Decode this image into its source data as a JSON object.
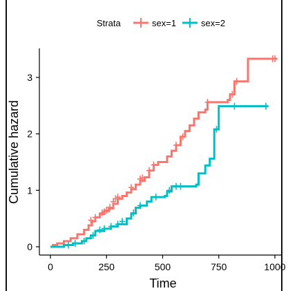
{
  "chart_data": {
    "type": "line",
    "title": "",
    "xlabel": "Time",
    "ylabel": "Cumulative hazard",
    "xlim": [
      0,
      1022
    ],
    "ylim": [
      0,
      3.5
    ],
    "xticks": [
      0,
      250,
      500,
      750,
      1000
    ],
    "yticks": [
      0,
      1,
      2,
      3
    ],
    "grid": false,
    "legend": {
      "title": "Strata",
      "position": "top"
    },
    "series": [
      {
        "name": "sex=1",
        "color": "#F8766D",
        "steps": [
          [
            0,
            0
          ],
          [
            11,
            0.03
          ],
          [
            30,
            0.06
          ],
          [
            60,
            0.1
          ],
          [
            90,
            0.15
          ],
          [
            120,
            0.22
          ],
          [
            150,
            0.3
          ],
          [
            170,
            0.38
          ],
          [
            185,
            0.45
          ],
          [
            200,
            0.52
          ],
          [
            220,
            0.58
          ],
          [
            240,
            0.63
          ],
          [
            260,
            0.68
          ],
          [
            280,
            0.76
          ],
          [
            300,
            0.85
          ],
          [
            320,
            0.9
          ],
          [
            340,
            0.96
          ],
          [
            360,
            1.02
          ],
          [
            380,
            1.1
          ],
          [
            400,
            1.17
          ],
          [
            420,
            1.23
          ],
          [
            440,
            1.35
          ],
          [
            460,
            1.45
          ],
          [
            480,
            1.5
          ],
          [
            520,
            1.6
          ],
          [
            540,
            1.7
          ],
          [
            560,
            1.8
          ],
          [
            580,
            1.95
          ],
          [
            600,
            2.05
          ],
          [
            620,
            2.15
          ],
          [
            640,
            2.27
          ],
          [
            660,
            2.38
          ],
          [
            690,
            2.43
          ],
          [
            700,
            2.56
          ],
          [
            790,
            2.6
          ],
          [
            800,
            2.7
          ],
          [
            820,
            2.93
          ],
          [
            880,
            3.33
          ],
          [
            1010,
            3.33
          ]
        ],
        "censored": [
          [
            180,
            0.47
          ],
          [
            200,
            0.52
          ],
          [
            230,
            0.6
          ],
          [
            240,
            0.62
          ],
          [
            250,
            0.65
          ],
          [
            265,
            0.7
          ],
          [
            280,
            0.8
          ],
          [
            290,
            0.85
          ],
          [
            300,
            0.88
          ],
          [
            360,
            1.05
          ],
          [
            400,
            1.2
          ],
          [
            410,
            1.22
          ],
          [
            440,
            1.35
          ],
          [
            460,
            1.45
          ],
          [
            560,
            1.8
          ],
          [
            590,
            1.95
          ],
          [
            700,
            2.56
          ],
          [
            810,
            2.7
          ],
          [
            830,
            2.93
          ],
          [
            990,
            3.33
          ],
          [
            1000,
            3.33
          ]
        ]
      },
      {
        "name": "sex=2",
        "color": "#00BFC4",
        "steps": [
          [
            0,
            0
          ],
          [
            60,
            0.03
          ],
          [
            100,
            0.06
          ],
          [
            140,
            0.1
          ],
          [
            160,
            0.15
          ],
          [
            180,
            0.2
          ],
          [
            200,
            0.28
          ],
          [
            240,
            0.32
          ],
          [
            270,
            0.36
          ],
          [
            300,
            0.4
          ],
          [
            340,
            0.5
          ],
          [
            360,
            0.59
          ],
          [
            380,
            0.69
          ],
          [
            400,
            0.73
          ],
          [
            430,
            0.8
          ],
          [
            450,
            0.88
          ],
          [
            510,
            0.9
          ],
          [
            520,
            0.98
          ],
          [
            540,
            1.07
          ],
          [
            650,
            1.1
          ],
          [
            660,
            1.3
          ],
          [
            690,
            1.44
          ],
          [
            710,
            1.56
          ],
          [
            730,
            2.08
          ],
          [
            750,
            2.49
          ],
          [
            970,
            2.49
          ]
        ],
        "censored": [
          [
            80,
            0.03
          ],
          [
            110,
            0.06
          ],
          [
            150,
            0.1
          ],
          [
            190,
            0.2
          ],
          [
            220,
            0.3
          ],
          [
            240,
            0.32
          ],
          [
            270,
            0.36
          ],
          [
            300,
            0.4
          ],
          [
            320,
            0.45
          ],
          [
            370,
            0.6
          ],
          [
            400,
            0.73
          ],
          [
            470,
            0.88
          ],
          [
            530,
            1.0
          ],
          [
            560,
            1.07
          ],
          [
            580,
            1.07
          ],
          [
            740,
            2.08
          ],
          [
            820,
            2.49
          ],
          [
            960,
            2.49
          ]
        ]
      }
    ]
  }
}
